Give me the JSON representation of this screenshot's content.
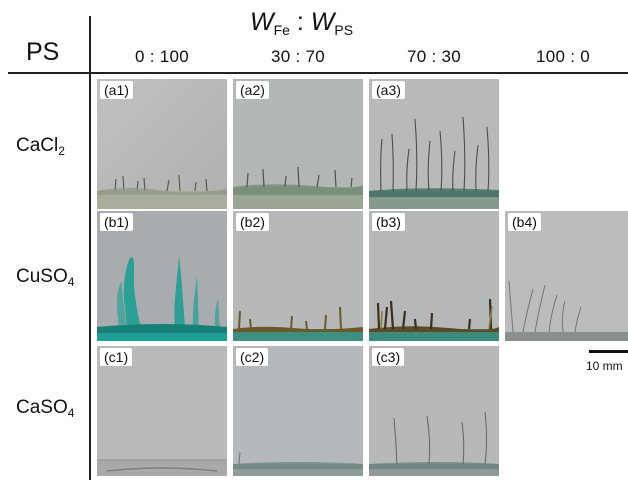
{
  "header": {
    "ratio_w1": "W",
    "ratio_s1": "Fe",
    "ratio_sep": " : ",
    "ratio_w2": "W",
    "ratio_s2": "PS",
    "ps_label": "PS",
    "columns": [
      "0 : 100",
      "30 : 70",
      "70 : 30",
      "100 : 0"
    ]
  },
  "rows": [
    {
      "base": "CaCl",
      "sub": "2"
    },
    {
      "base": "CuSO",
      "sub": "4"
    },
    {
      "base": "CaSO",
      "sub": "4"
    }
  ],
  "panels": {
    "a1": "(a1)",
    "a2": "(a2)",
    "a3": "(a3)",
    "b1": "(b1)",
    "b2": "(b2)",
    "b3": "(b3)",
    "b4": "(b4)",
    "c1": "(c1)",
    "c2": "(c2)",
    "c3": "(c3)"
  },
  "scale_bar": {
    "label": "10 mm"
  },
  "colors": {
    "panel_gray": "#b7b9b8",
    "teal_growth": "#1f9e95",
    "brown_growth": "#6a5a2a"
  }
}
